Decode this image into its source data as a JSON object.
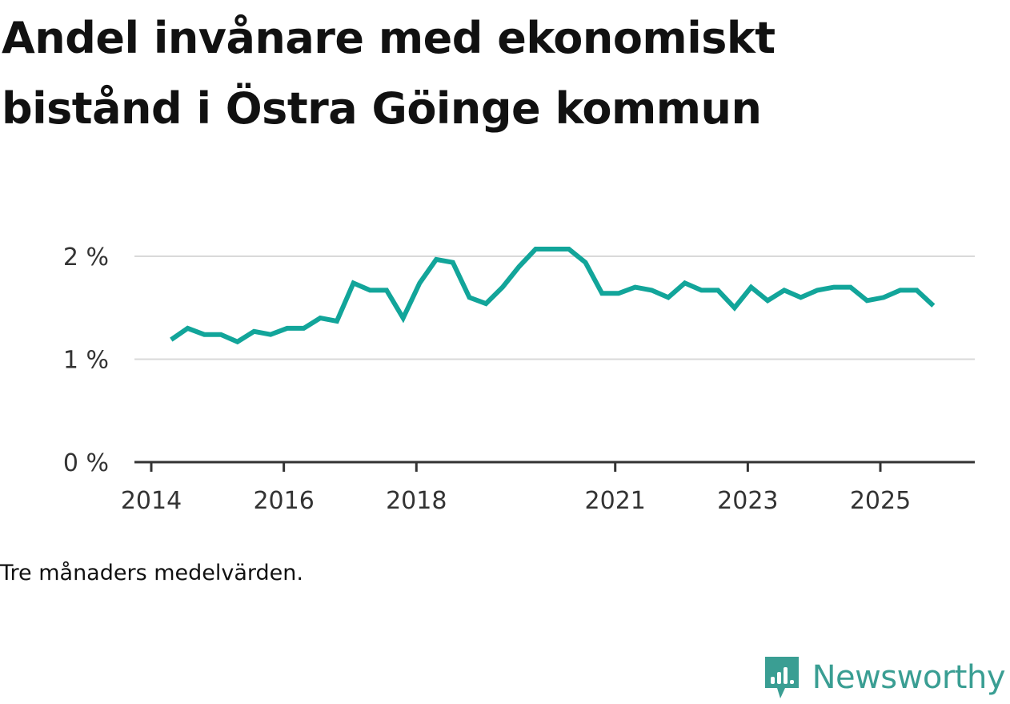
{
  "title": "Andel invånare med ekonomiskt bistånd i Östra Göinge kommun",
  "caption": "Tre månaders medelvärden.",
  "brand": {
    "name": "Newsworthy"
  },
  "colors": {
    "line": "#12a59a",
    "brand": "#3a9e93",
    "grid": "#d9d9d9",
    "axis": "#333333"
  },
  "chart_data": {
    "type": "line",
    "title": "Andel invånare med ekonomiskt bistånd i Östra Göinge kommun",
    "xlabel": "",
    "ylabel": "",
    "ylim": [
      0,
      2
    ],
    "yticks": [
      0,
      1,
      2
    ],
    "ytick_labels": [
      "0 %",
      "1 %",
      "2 %"
    ],
    "xticks": [
      2014,
      2016,
      2018,
      2021,
      2023,
      2025
    ],
    "xtick_labels": [
      "2014",
      "2016",
      "2018",
      "2021",
      "2023",
      "2025"
    ],
    "grid": true,
    "series": [
      {
        "name": "Andel invånare med ekonomiskt bistånd",
        "x": [
          2014.3,
          2014.55,
          2014.8,
          2015.05,
          2015.3,
          2015.55,
          2015.8,
          2016.05,
          2016.3,
          2016.55,
          2016.8,
          2017.05,
          2017.3,
          2017.55,
          2017.8,
          2018.05,
          2018.3,
          2018.55,
          2018.8,
          2019.05,
          2019.3,
          2019.55,
          2019.8,
          2020.05,
          2020.3,
          2020.55,
          2020.8,
          2021.05,
          2021.3,
          2021.55,
          2021.8,
          2022.05,
          2022.3,
          2022.55,
          2022.8,
          2023.05,
          2023.3,
          2023.55,
          2023.8,
          2024.05,
          2024.3,
          2024.55,
          2024.8,
          2025.05,
          2025.3,
          2025.55,
          2025.8
        ],
        "values": [
          1.19,
          1.3,
          1.24,
          1.24,
          1.17,
          1.27,
          1.24,
          1.3,
          1.3,
          1.4,
          1.37,
          1.74,
          1.67,
          1.67,
          1.4,
          1.74,
          1.97,
          1.94,
          1.6,
          1.54,
          1.7,
          1.9,
          2.07,
          2.07,
          2.07,
          1.94,
          1.64,
          1.64,
          1.7,
          1.67,
          1.6,
          1.74,
          1.67,
          1.67,
          1.5,
          1.7,
          1.57,
          1.67,
          1.6,
          1.67,
          1.7,
          1.7,
          1.57,
          1.6,
          1.67,
          1.67,
          1.52
        ]
      }
    ]
  }
}
